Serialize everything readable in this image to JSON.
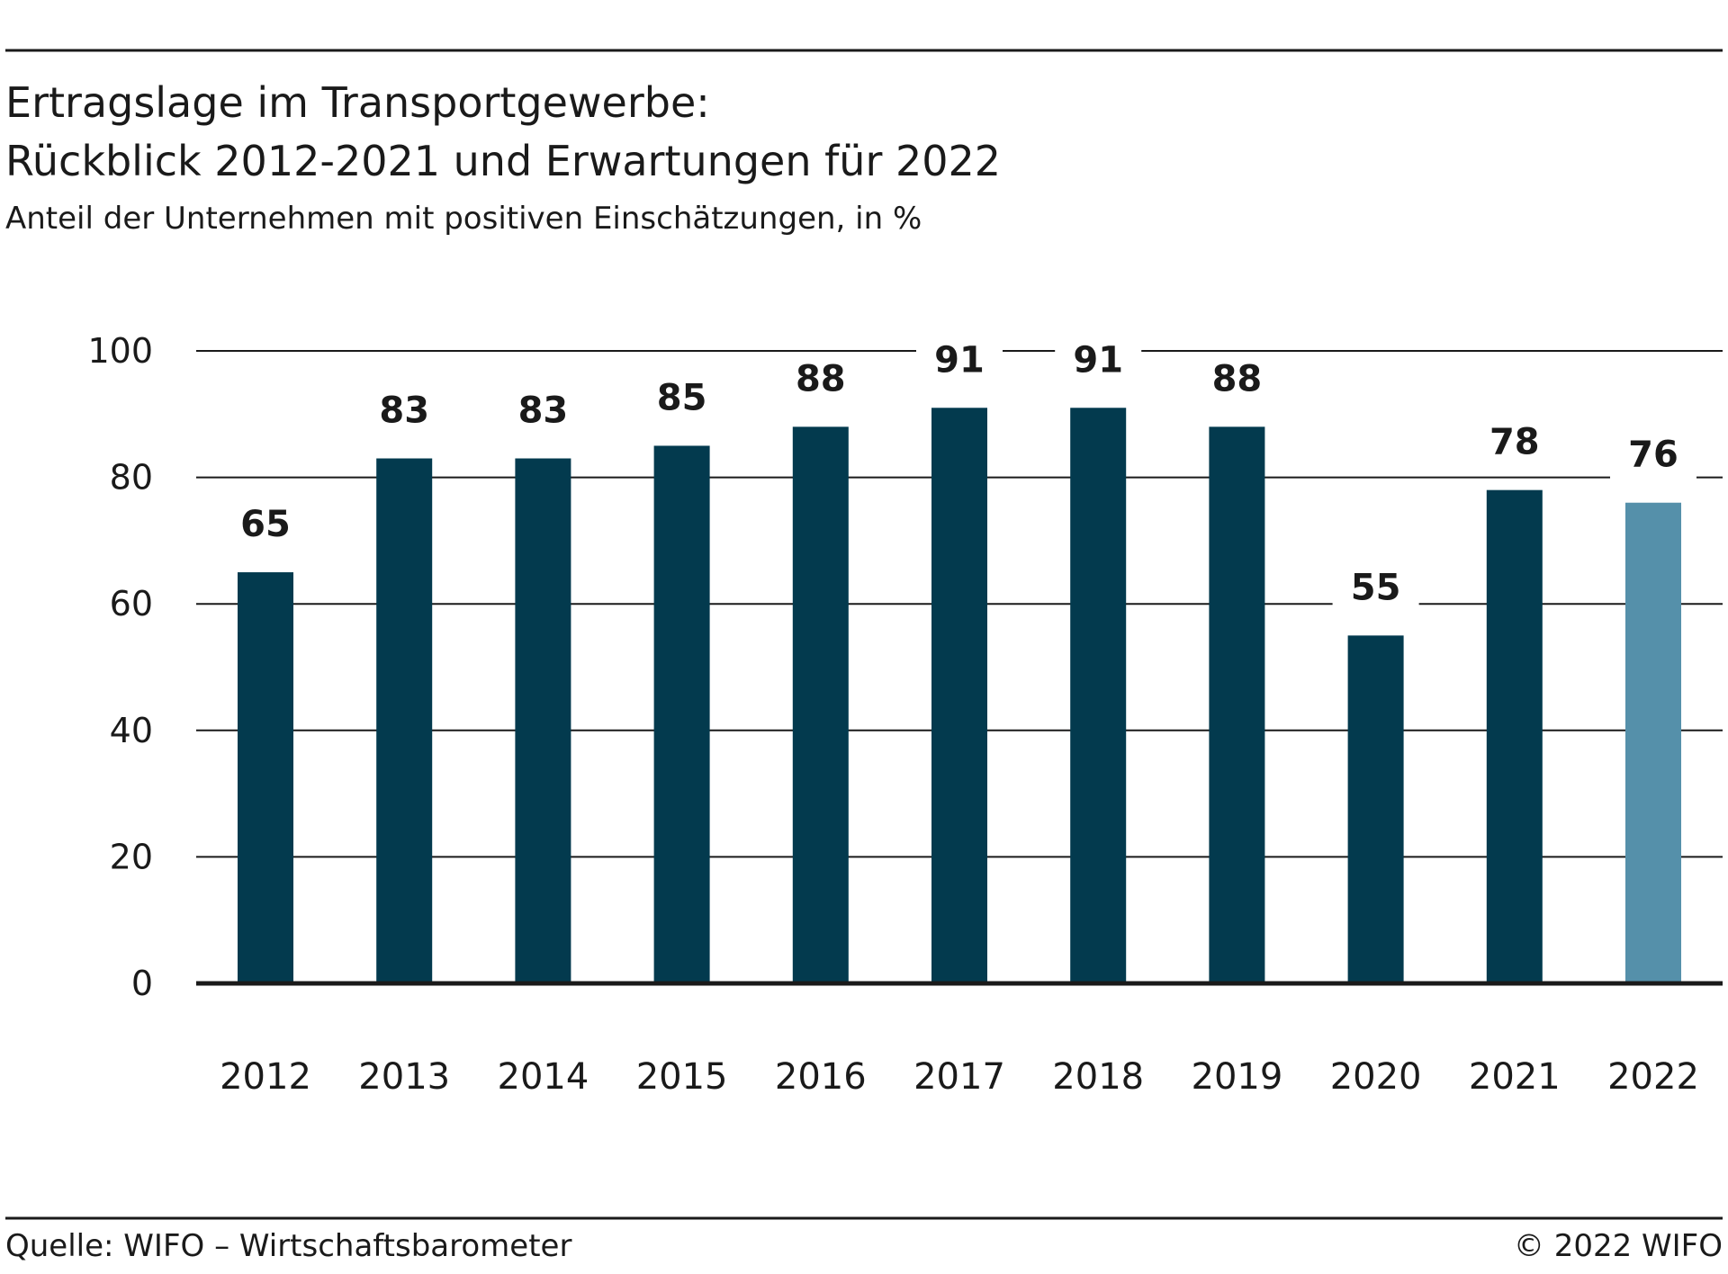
{
  "colors": {
    "bar_actual": "#033a4e",
    "bar_expected": "#5590aa",
    "gridline": "#1a1a1a",
    "text": "#1a1a1a",
    "background": "#ffffff"
  },
  "footer": {
    "source": "Quelle: WIFO – Wirtschaftsbarometer",
    "copyright": "© 2022 WIFO"
  },
  "chart_data": {
    "type": "bar",
    "title": "Ertragslage im Transportgewerbe:",
    "title_line2": "Rückblick 2012-2021 und Erwartungen für 2022",
    "subtitle": "Anteil der Unternehmen mit positiven Einschätzungen, in %",
    "xlabel": "",
    "ylabel": "",
    "ylim": [
      0,
      100
    ],
    "yticks": [
      0,
      20,
      40,
      60,
      80,
      100
    ],
    "grid": "horizontal",
    "categories": [
      "2012",
      "2013",
      "2014",
      "2015",
      "2016",
      "2017",
      "2018",
      "2019",
      "2020",
      "2021",
      "2022"
    ],
    "values": [
      65,
      83,
      83,
      85,
      88,
      91,
      91,
      88,
      55,
      78,
      76
    ],
    "value_labels": [
      "65",
      "83",
      "83",
      "85",
      "88",
      "91",
      "91",
      "88",
      "55",
      "78",
      "76"
    ],
    "highlight_category": "2022"
  }
}
